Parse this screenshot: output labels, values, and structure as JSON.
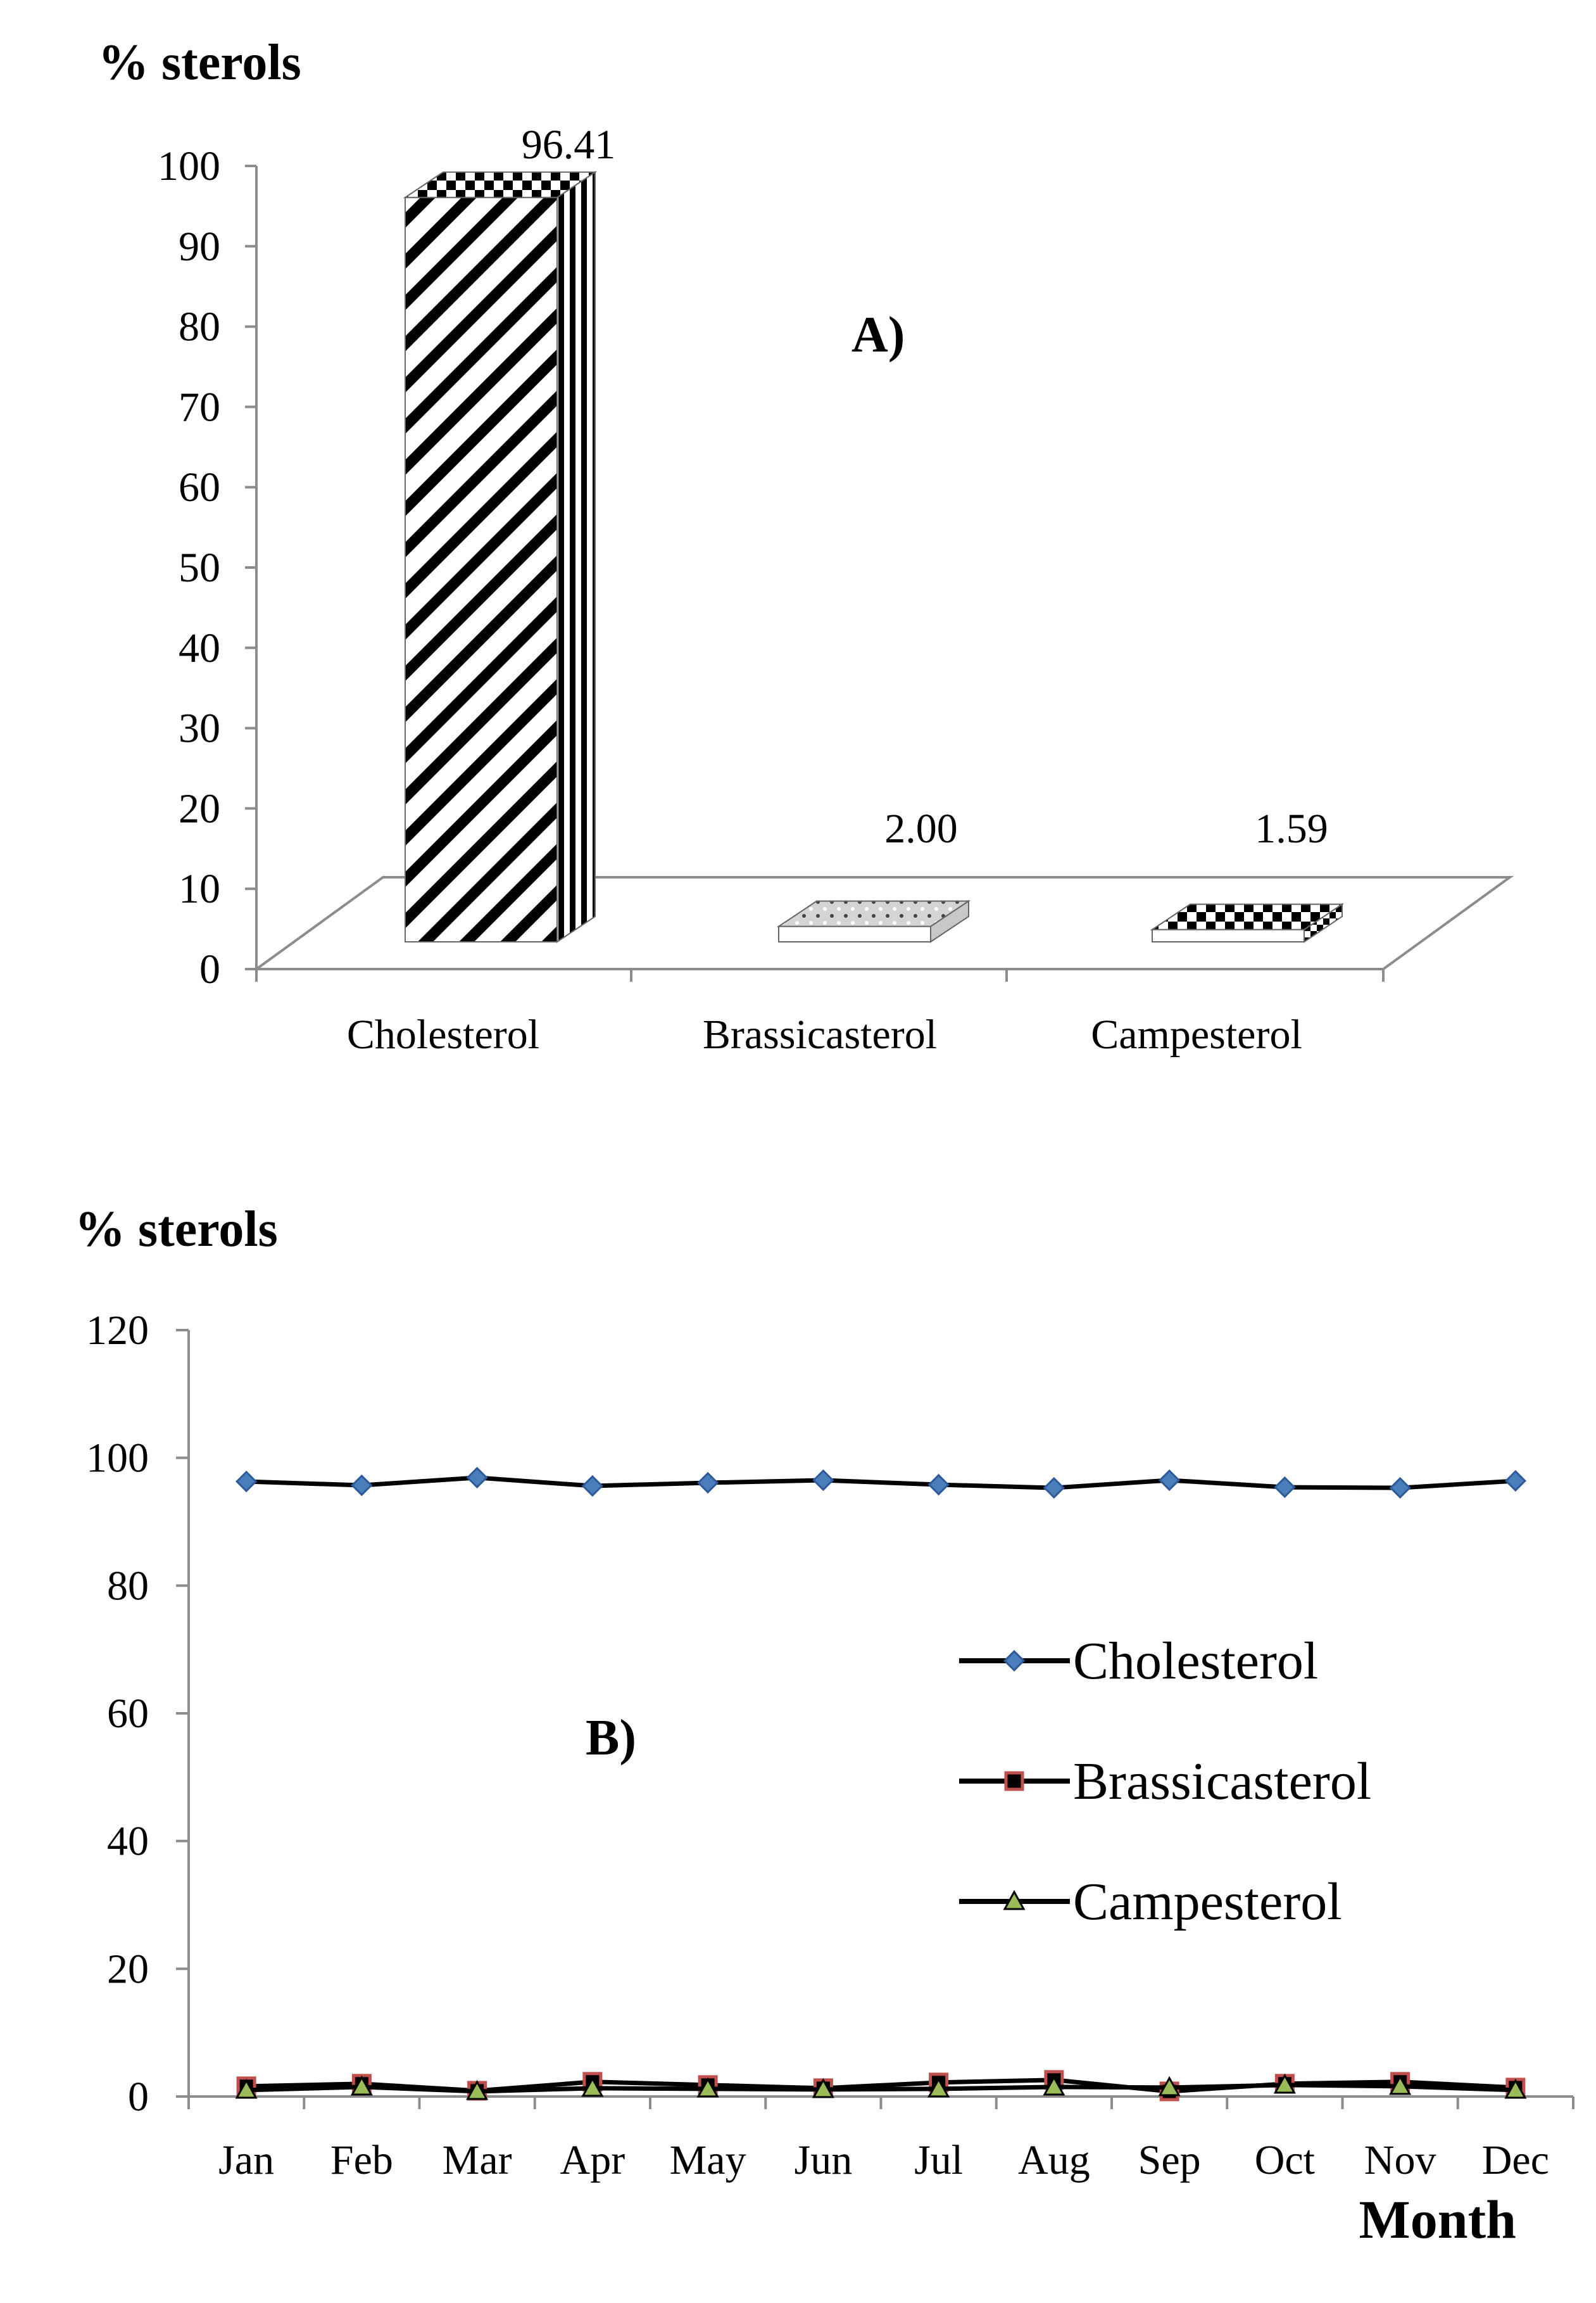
{
  "chart_data": [
    {
      "type": "bar",
      "panel_label": "A)",
      "ylabel": "% sterols",
      "categories": [
        "Cholesterol",
        "Brassicasterol",
        "Campesterol"
      ],
      "values": [
        96.41,
        2.0,
        1.59
      ],
      "value_labels": [
        "96.41",
        "2.00",
        "1.59"
      ],
      "ylim": [
        0,
        100
      ],
      "yticks": [
        0,
        10,
        20,
        30,
        40,
        50,
        60,
        70,
        80,
        90,
        100
      ],
      "style": "3d"
    },
    {
      "type": "line",
      "panel_label": "B)",
      "ylabel": "% sterols",
      "xlabel": "Month",
      "categories": [
        "Jan",
        "Feb",
        "Mar",
        "Apr",
        "May",
        "Jun",
        "Jul",
        "Aug",
        "Sep",
        "Oct",
        "Nov",
        "Dec"
      ],
      "ylim": [
        0,
        120
      ],
      "yticks": [
        0,
        20,
        40,
        60,
        80,
        100,
        120
      ],
      "legend_position": "right",
      "series": [
        {
          "name": "Cholesterol",
          "marker": "diamond",
          "color": "#4a7ebb",
          "values": [
            96.3,
            95.7,
            96.9,
            95.6,
            96.1,
            96.5,
            95.8,
            95.3,
            96.5,
            95.4,
            95.3,
            96.4
          ]
        },
        {
          "name": "Brassicasterol",
          "marker": "square",
          "color": "#c0504d",
          "values": [
            1.6,
            2.0,
            0.9,
            2.3,
            1.8,
            1.3,
            2.2,
            2.6,
            0.8,
            2.0,
            2.3,
            1.4
          ]
        },
        {
          "name": "Campesterol",
          "marker": "triangle",
          "color": "#9bbb59",
          "values": [
            1.0,
            1.5,
            0.8,
            1.3,
            1.2,
            1.1,
            1.2,
            1.5,
            1.4,
            1.8,
            1.6,
            1.0
          ]
        }
      ]
    }
  ]
}
